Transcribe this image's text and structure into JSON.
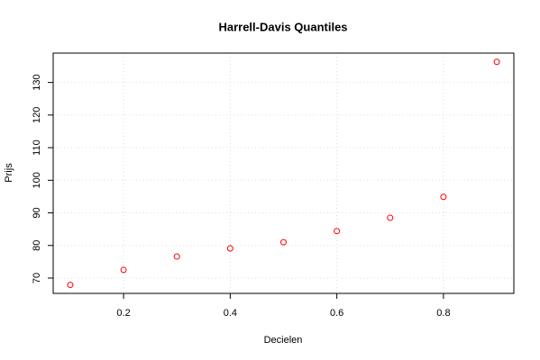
{
  "chart_data": {
    "type": "scatter",
    "title": "Harrell-Davis Quantiles",
    "x_label": "Decielen",
    "y_label": "Prijs",
    "x": [
      0.1,
      0.2,
      0.3,
      0.4,
      0.5,
      0.6,
      0.7,
      0.8,
      0.9
    ],
    "values": [
      67.9,
      72.5,
      76.6,
      79.1,
      81.0,
      84.4,
      88.5,
      94.9,
      136.3
    ],
    "color": "#ff0000",
    "xlim": [
      0.068,
      0.932
    ],
    "xticks": [
      0.2,
      0.4,
      0.6,
      0.8
    ],
    "ylim": [
      65.3,
      139.0
    ],
    "yticks": [
      70,
      80,
      90,
      100,
      110,
      120,
      130
    ],
    "grid": true
  }
}
